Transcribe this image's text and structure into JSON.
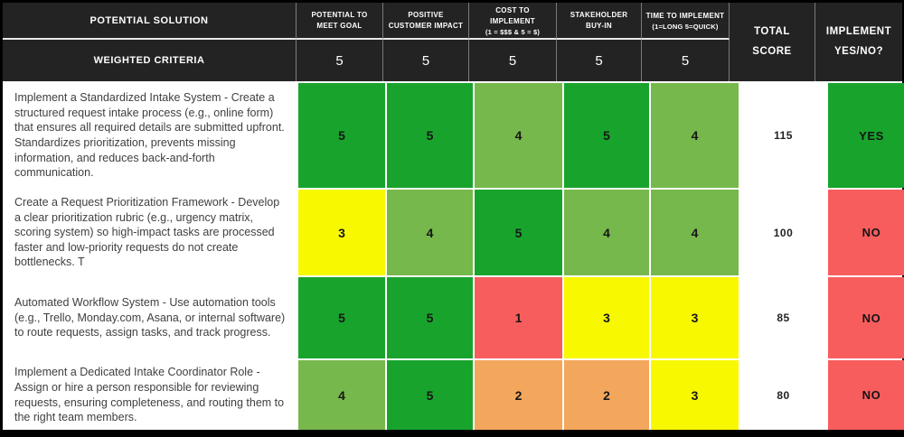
{
  "palette": {
    "header_bg": "#232323",
    "header_text": "#ffffff",
    "green": "#18a42c",
    "light_green": "#76b84b",
    "yellow": "#f8f800",
    "orange": "#f3a75d",
    "red": "#f85d5d",
    "white": "#ffffff"
  },
  "header": {
    "solution_label": "POTENTIAL SOLUTION",
    "weighted_label": "WEIGHTED CRITERIA",
    "criteria": [
      {
        "title": "POTENTIAL TO MEET GOAL",
        "subtitle": "",
        "weight": "5"
      },
      {
        "title": "POSITIVE CUSTOMER IMPACT",
        "subtitle": "",
        "weight": "5"
      },
      {
        "title": "COST TO IMPLEMENT",
        "subtitle": "(1 = $$$ & 5 = $)",
        "weight": "5"
      },
      {
        "title": "STAKEHOLDER BUY-IN",
        "subtitle": "",
        "weight": "5"
      },
      {
        "title": "TIME TO IMPLEMENT",
        "subtitle": "(1=LONG 5=QUICK)",
        "weight": "5"
      }
    ],
    "total_label": "TOTAL SCORE",
    "implement_label_line1": "IMPLEMENT",
    "implement_label_line2": "YES/NO?"
  },
  "rows": [
    {
      "solution": "Implement a Standardized Intake System - Create a structured request intake process (e.g., online form) that ensures all required details are submitted upfront. Standardizes prioritization, prevents missing information, and reduces back-and-forth communication.",
      "scores": [
        "5",
        "5",
        "4",
        "5",
        "4"
      ],
      "score_colors": [
        "#18a42c",
        "#18a42c",
        "#76b84b",
        "#18a42c",
        "#76b84b"
      ],
      "total": "115",
      "decision": "YES",
      "decision_color": "#18a42c"
    },
    {
      "solution": "Create a Request Prioritization Framework - Develop a clear prioritization rubric (e.g., urgency matrix, scoring system) so high-impact tasks are processed faster and low-priority requests do not create bottlenecks. T",
      "scores": [
        "3",
        "4",
        "5",
        "4",
        "4"
      ],
      "score_colors": [
        "#f8f800",
        "#76b84b",
        "#18a42c",
        "#76b84b",
        "#76b84b"
      ],
      "total": "100",
      "decision": "NO",
      "decision_color": "#f85d5d"
    },
    {
      "solution": "Automated Workflow System - Use automation tools (e.g., Trello, Monday.com, Asana, or internal software) to route requests, assign tasks, and track progress.",
      "scores": [
        "5",
        "5",
        "1",
        "3",
        "3"
      ],
      "score_colors": [
        "#18a42c",
        "#18a42c",
        "#f85d5d",
        "#f8f800",
        "#f8f800"
      ],
      "total": "85",
      "decision": "NO",
      "decision_color": "#f85d5d"
    },
    {
      "solution": "Implement a Dedicated Intake Coordinator Role - Assign or hire a person responsible for reviewing requests, ensuring completeness, and routing them to the right team members.",
      "scores": [
        "4",
        "5",
        "2",
        "2",
        "3"
      ],
      "score_colors": [
        "#76b84b",
        "#18a42c",
        "#f3a75d",
        "#f3a75d",
        "#f8f800"
      ],
      "total": "80",
      "decision": "NO",
      "decision_color": "#f85d5d"
    }
  ]
}
